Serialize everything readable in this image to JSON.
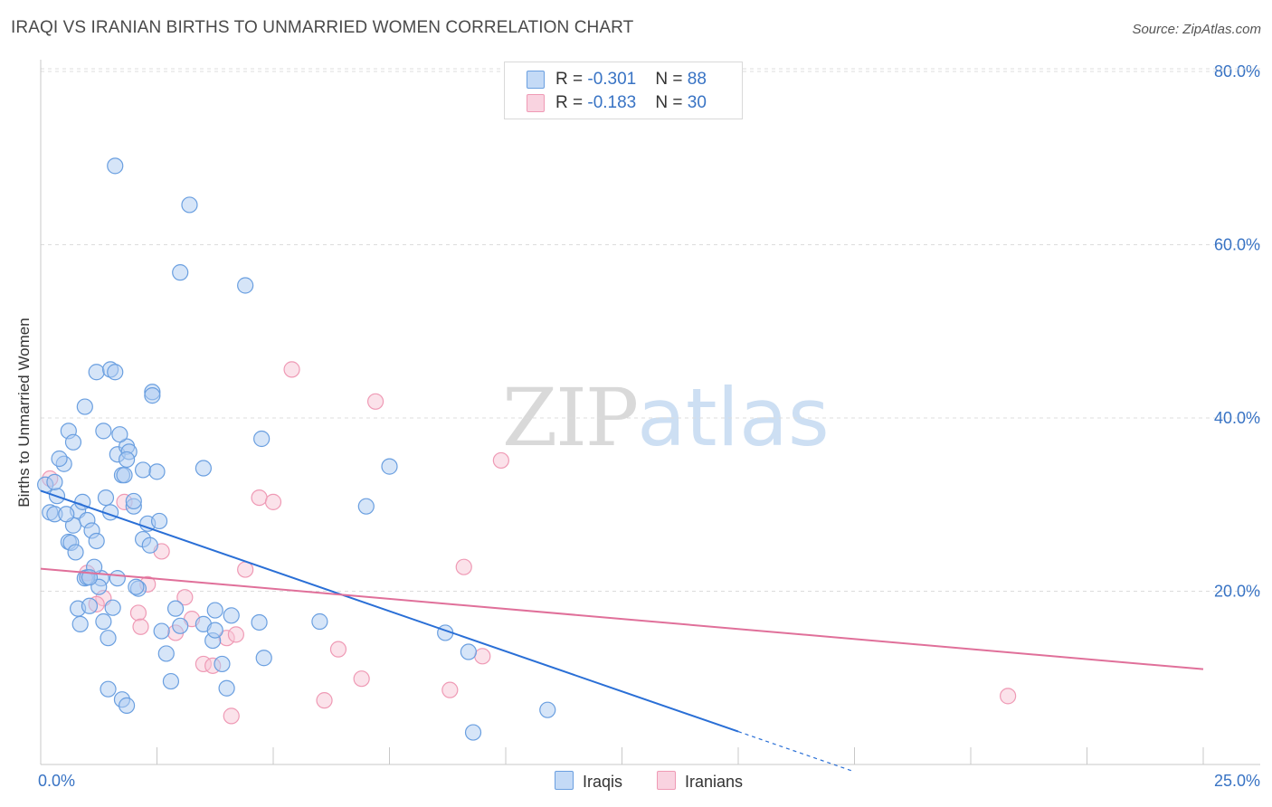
{
  "title": "IRAQI VS IRANIAN BIRTHS TO UNMARRIED WOMEN CORRELATION CHART",
  "source": "Source: ZipAtlas.com",
  "watermark": {
    "part1": "ZIP",
    "part2": "atlas"
  },
  "legend_top": {
    "iraqis": {
      "r_label": "R = ",
      "r_value": "-0.301",
      "n_label": "N = ",
      "n_value": "88"
    },
    "iranians": {
      "r_label": "R = ",
      "r_value": "-0.183",
      "n_label": "N = ",
      "n_value": "30"
    }
  },
  "colors": {
    "iraqis_fill": "#aecbf2",
    "iraqis_stroke": "#6a9fe0",
    "iraqis_line": "#2a6fd6",
    "iranians_fill": "#f8c6d6",
    "iranians_stroke": "#ef9ab5",
    "iranians_line": "#e0709a",
    "axis_text": "#3873c4",
    "grid": "#dcdcdc"
  },
  "chart_data": {
    "type": "scatter",
    "title": "IRAQI VS IRANIAN BIRTHS TO UNMARRIED WOMEN CORRELATION CHART",
    "xlabel": "",
    "ylabel": "Births to Unmarried Women",
    "xlim": [
      0,
      26
    ],
    "ylim": [
      0,
      80.5
    ],
    "x_tick_labels": [
      "0.0%",
      "25.0%"
    ],
    "y_ticks": [
      20,
      40,
      60,
      80
    ],
    "y_tick_labels": [
      "20.0%",
      "40.0%",
      "60.0%",
      "80.0%"
    ],
    "grid": true,
    "series": [
      {
        "name": "Iraqis",
        "r": -0.301,
        "n": 88,
        "trend": {
          "x0": 0,
          "y0": 31.6,
          "x1": 15,
          "y1": 3.8,
          "dashed_to_x": 17.5
        },
        "points": [
          [
            0.1,
            32.3
          ],
          [
            0.2,
            29.1
          ],
          [
            0.3,
            28.9
          ],
          [
            0.35,
            31.0
          ],
          [
            0.5,
            34.7
          ],
          [
            0.6,
            25.7
          ],
          [
            0.7,
            27.6
          ],
          [
            0.8,
            29.3
          ],
          [
            0.9,
            30.3
          ],
          [
            1.0,
            28.2
          ],
          [
            0.8,
            18.0
          ],
          [
            1.1,
            27.0
          ],
          [
            1.2,
            25.8
          ],
          [
            1.3,
            21.5
          ],
          [
            1.4,
            30.8
          ],
          [
            1.5,
            29.1
          ],
          [
            0.4,
            35.3
          ],
          [
            0.55,
            28.9
          ],
          [
            0.65,
            25.6
          ],
          [
            0.75,
            24.5
          ],
          [
            0.85,
            16.2
          ],
          [
            0.95,
            21.5
          ],
          [
            1.05,
            18.3
          ],
          [
            1.15,
            22.8
          ],
          [
            1.25,
            20.5
          ],
          [
            1.35,
            16.5
          ],
          [
            1.45,
            14.6
          ],
          [
            1.55,
            18.1
          ],
          [
            0.6,
            38.5
          ],
          [
            0.7,
            37.2
          ],
          [
            0.95,
            41.3
          ],
          [
            1.2,
            45.3
          ],
          [
            1.5,
            45.6
          ],
          [
            1.65,
            35.8
          ],
          [
            1.75,
            33.4
          ],
          [
            1.85,
            36.7
          ],
          [
            2.0,
            29.8
          ],
          [
            2.1,
            20.3
          ],
          [
            2.2,
            34.0
          ],
          [
            2.3,
            27.8
          ],
          [
            2.4,
            43.0
          ],
          [
            2.5,
            33.8
          ],
          [
            2.6,
            15.4
          ],
          [
            2.7,
            12.8
          ],
          [
            2.8,
            9.6
          ],
          [
            2.9,
            18.0
          ],
          [
            3.0,
            16.0
          ],
          [
            1.6,
            45.3
          ],
          [
            1.7,
            38.1
          ],
          [
            1.8,
            33.4
          ],
          [
            1.9,
            36.1
          ],
          [
            2.0,
            30.4
          ],
          [
            2.2,
            26.0
          ],
          [
            2.35,
            25.3
          ],
          [
            1.6,
            69.1
          ],
          [
            3.0,
            56.8
          ],
          [
            3.2,
            64.6
          ],
          [
            3.5,
            16.2
          ],
          [
            3.7,
            14.3
          ],
          [
            3.75,
            15.5
          ],
          [
            3.9,
            11.6
          ],
          [
            4.0,
            8.8
          ],
          [
            4.1,
            17.2
          ],
          [
            4.4,
            55.3
          ],
          [
            4.7,
            16.4
          ],
          [
            4.8,
            12.3
          ],
          [
            6.0,
            16.5
          ],
          [
            7.0,
            29.8
          ],
          [
            8.7,
            15.2
          ],
          [
            9.2,
            13.0
          ],
          [
            9.3,
            3.7
          ],
          [
            10.9,
            6.3
          ],
          [
            4.75,
            37.6
          ],
          [
            7.5,
            34.4
          ],
          [
            1.0,
            21.6
          ],
          [
            1.35,
            38.5
          ],
          [
            1.85,
            35.2
          ],
          [
            2.55,
            28.1
          ],
          [
            3.5,
            34.2
          ],
          [
            1.05,
            21.6
          ],
          [
            1.65,
            21.5
          ],
          [
            2.05,
            20.5
          ],
          [
            3.75,
            17.8
          ],
          [
            1.75,
            7.5
          ],
          [
            1.85,
            6.8
          ],
          [
            1.45,
            8.7
          ],
          [
            2.4,
            42.6
          ],
          [
            0.3,
            32.6
          ]
        ]
      },
      {
        "name": "Iranians",
        "r": -0.183,
        "n": 30,
        "trend": {
          "x0": 0,
          "y0": 22.6,
          "x1": 25,
          "y1": 11.0
        },
        "points": [
          [
            0.2,
            33.0
          ],
          [
            1.0,
            22.1
          ],
          [
            1.35,
            19.2
          ],
          [
            1.2,
            18.5
          ],
          [
            1.8,
            30.3
          ],
          [
            2.1,
            17.5
          ],
          [
            2.15,
            15.9
          ],
          [
            2.3,
            20.8
          ],
          [
            2.6,
            24.6
          ],
          [
            2.9,
            15.2
          ],
          [
            3.1,
            19.3
          ],
          [
            3.25,
            16.8
          ],
          [
            3.5,
            11.6
          ],
          [
            3.7,
            11.4
          ],
          [
            4.0,
            14.6
          ],
          [
            4.2,
            15.0
          ],
          [
            4.4,
            22.5
          ],
          [
            4.7,
            30.8
          ],
          [
            5.0,
            30.3
          ],
          [
            5.4,
            45.6
          ],
          [
            6.1,
            7.4
          ],
          [
            6.4,
            13.3
          ],
          [
            6.9,
            9.9
          ],
          [
            7.2,
            41.9
          ],
          [
            8.8,
            8.6
          ],
          [
            9.1,
            22.8
          ],
          [
            9.5,
            12.5
          ],
          [
            9.9,
            35.1
          ],
          [
            20.8,
            7.9
          ],
          [
            4.1,
            5.6
          ]
        ]
      }
    ]
  },
  "legend_bottom": {
    "iraqis": "Iraqis",
    "iranians": "Iranians"
  }
}
